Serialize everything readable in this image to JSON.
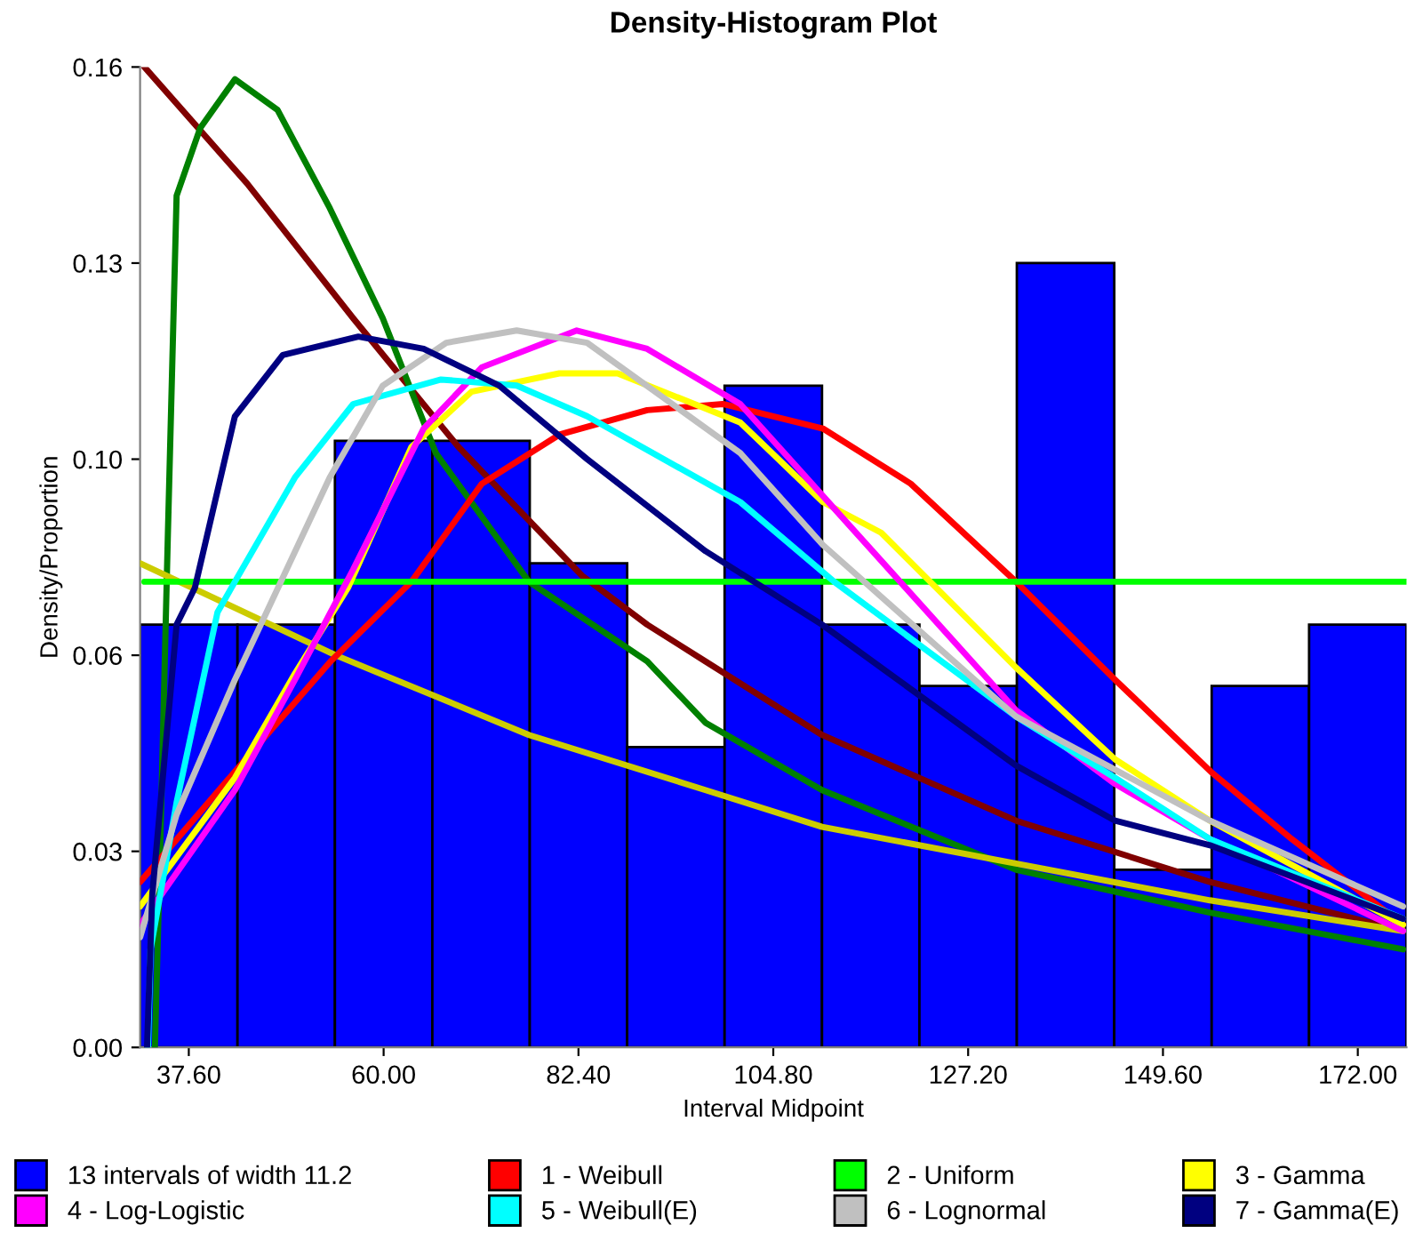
{
  "chart_data": {
    "type": "histogram",
    "title": "Density-Histogram Plot",
    "xlabel": "Interval Midpoint",
    "ylabel": "Density/Proportion",
    "bins": [
      32.0,
      43.2,
      54.4,
      65.6,
      76.8,
      88.0,
      99.2,
      110.4,
      121.6,
      132.8,
      144.0,
      155.2,
      166.4,
      177.6
    ],
    "xlim": [
      32.0,
      177.6
    ],
    "ylim": [
      0,
      0.16
    ],
    "xticks": [
      {
        "value": 37.6,
        "label": "37.60"
      },
      {
        "value": 60.0,
        "label": "60.00"
      },
      {
        "value": 82.4,
        "label": "82.40"
      },
      {
        "value": 104.8,
        "label": "104.80"
      },
      {
        "value": 127.2,
        "label": "127.20"
      },
      {
        "value": 149.6,
        "label": "149.60"
      },
      {
        "value": 172.0,
        "label": "172.00"
      }
    ],
    "yticks": [
      {
        "value": 0,
        "label": "0.00"
      },
      {
        "value": 0.032,
        "label": "0.03"
      },
      {
        "value": 0.064,
        "label": "0.06"
      },
      {
        "value": 0.096,
        "label": "0.10"
      },
      {
        "value": 0.128,
        "label": "0.13"
      },
      {
        "value": 0.16,
        "label": "0.16"
      }
    ],
    "grid": false,
    "legend": "bottom",
    "series": [
      {
        "name": "13 intervals of width 11.2",
        "color": "#0000ff",
        "values": [
          0.069,
          0.069,
          0.099,
          0.099,
          0.079,
          0.049,
          0.108,
          0.069,
          0.059,
          0.128,
          0.029,
          0.059,
          0.069
        ]
      },
      {
        "type": "line",
        "color": "#800000",
        "x": [
          32.5,
          44.3,
          56.5,
          68.6,
          82.8,
          90.3,
          97.0,
          110.4,
          132.7,
          155.0,
          177.2
        ],
        "values": [
          0.16,
          0.141,
          0.119,
          0.098,
          0.077,
          0.069,
          0.063,
          0.051,
          0.037,
          0.027,
          0.019
        ]
      },
      {
        "type": "line",
        "color": "#008000",
        "x": [
          33.7,
          34.2,
          35.2,
          36.2,
          38.9,
          42.9,
          47.8,
          53.8,
          59.9,
          66.0,
          76.7,
          90.3,
          97.0,
          110.4,
          132.7,
          155.0,
          177.2
        ],
        "values": [
          0.0,
          0.026,
          0.084,
          0.139,
          0.15,
          0.158,
          0.153,
          0.137,
          0.119,
          0.097,
          0.076,
          0.063,
          0.053,
          0.042,
          0.029,
          0.022,
          0.016
        ]
      },
      {
        "type": "line",
        "color": "#cccc00",
        "x": [
          32.0,
          54.5,
          76.7,
          97.0,
          110.4,
          132.7,
          155.0,
          177.2
        ],
        "values": [
          0.079,
          0.064,
          0.051,
          0.042,
          0.036,
          0.03,
          0.024,
          0.019
        ]
      },
      {
        "type": "line",
        "name": "1 - Weibull",
        "color": "#ff0000",
        "x": [
          32.0,
          42.9,
          53.9,
          63.2,
          71.3,
          80.2,
          90.3,
          99.0,
          110.5,
          120.6,
          132.7,
          144.1,
          155.1,
          164.4,
          177.2
        ],
        "values": [
          0.027,
          0.045,
          0.063,
          0.076,
          0.092,
          0.1,
          0.104,
          0.105,
          0.101,
          0.092,
          0.076,
          0.06,
          0.045,
          0.034,
          0.02
        ]
      },
      {
        "type": "line",
        "name": "2 - Uniform",
        "color": "#00ff00",
        "x": [
          32.5,
          177.6
        ],
        "values": [
          0.076,
          0.076
        ]
      },
      {
        "type": "line",
        "name": "3 - Gamma",
        "color": "#ffff00",
        "x": [
          32.0,
          42.9,
          49.8,
          55.9,
          63.2,
          70.1,
          80.2,
          86.9,
          101.0,
          110.5,
          117.2,
          132.7,
          144.1,
          155.0,
          177.2
        ],
        "values": [
          0.023,
          0.044,
          0.061,
          0.075,
          0.098,
          0.107,
          0.11,
          0.11,
          0.102,
          0.089,
          0.084,
          0.062,
          0.047,
          0.037,
          0.02
        ]
      },
      {
        "type": "line",
        "name": "4 - Log-Logistic",
        "color": "#ff00ff",
        "x": [
          32.0,
          42.9,
          49.8,
          56.5,
          64.6,
          71.3,
          82.2,
          90.3,
          101.0,
          110.5,
          132.7,
          144.1,
          155.0,
          177.2
        ],
        "values": [
          0.02,
          0.042,
          0.06,
          0.078,
          0.101,
          0.111,
          0.117,
          0.114,
          0.105,
          0.09,
          0.055,
          0.043,
          0.034,
          0.019
        ]
      },
      {
        "type": "line",
        "name": "5 - Weibull(E)",
        "color": "#00ffff",
        "x": [
          32.9,
          33.2,
          36.2,
          40.9,
          42.9,
          49.8,
          56.5,
          66.6,
          75.3,
          83.4,
          101.0,
          111.8,
          132.7,
          144.1,
          155.0,
          177.2
        ],
        "values": [
          0.0,
          0.016,
          0.04,
          0.071,
          0.076,
          0.093,
          0.105,
          0.109,
          0.108,
          0.103,
          0.089,
          0.076,
          0.054,
          0.044,
          0.034,
          0.021
        ]
      },
      {
        "type": "line",
        "name": "6 - Lognormal",
        "color": "#c0c0c0",
        "x": [
          32.0,
          36.2,
          42.9,
          53.8,
          59.9,
          67.2,
          75.3,
          83.4,
          101.0,
          110.5,
          132.7,
          155.0,
          177.2
        ],
        "values": [
          0.018,
          0.038,
          0.06,
          0.093,
          0.108,
          0.115,
          0.117,
          0.115,
          0.097,
          0.082,
          0.054,
          0.037,
          0.023
        ]
      },
      {
        "type": "line",
        "name": "7 - Gamma(E)",
        "color": "#000080",
        "x": [
          32.8,
          33.4,
          36.2,
          38.3,
          42.9,
          48.4,
          57.1,
          64.6,
          73.3,
          83.4,
          97.0,
          110.4,
          132.7,
          144.1,
          155.0,
          177.2
        ],
        "values": [
          0.0,
          0.025,
          0.069,
          0.075,
          0.103,
          0.113,
          0.116,
          0.114,
          0.108,
          0.096,
          0.081,
          0.069,
          0.046,
          0.037,
          0.033,
          0.021
        ]
      }
    ]
  }
}
